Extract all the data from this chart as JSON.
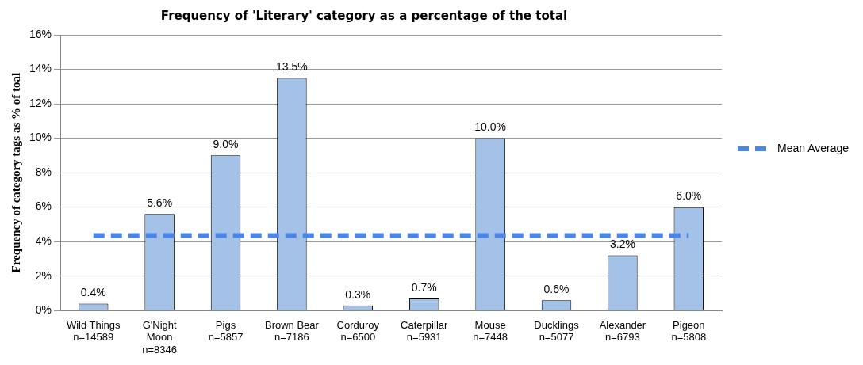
{
  "chart_data": {
    "type": "bar",
    "title": "Frequency of 'Literary' category as a percentage of the total",
    "ylabel": "Frequency of category tags as % of toal",
    "categories": [
      "Wild Things\nn=14589",
      "G'Night\nMoon\nn=8346",
      "Pigs\nn=5857",
      "Brown Bear\nn=7186",
      "Corduroy\nn=6500",
      "Caterpillar\nn=5931",
      "Mouse\nn=7448",
      "Ducklings\nn=5077",
      "Alexander\nn=6793",
      "Pigeon\nn=5808"
    ],
    "values": [
      0.4,
      5.6,
      9.0,
      13.5,
      0.3,
      0.7,
      10.0,
      0.6,
      3.2,
      6.0
    ],
    "value_labels": [
      "0.4%",
      "5.6%",
      "9.0%",
      "13.5%",
      "0.3%",
      "0.7%",
      "10.0%",
      "0.6%",
      "3.2%",
      "6.0%"
    ],
    "color": "#a4c2e8",
    "ylim": [
      0,
      16
    ],
    "yticks": [
      {
        "value": 0,
        "label": "0%"
      },
      {
        "value": 2,
        "label": "2%"
      },
      {
        "value": 4,
        "label": "4%"
      },
      {
        "value": 6,
        "label": "6%"
      },
      {
        "value": 8,
        "label": "8%"
      },
      {
        "value": 10,
        "label": "10%"
      },
      {
        "value": 12,
        "label": "12%"
      },
      {
        "value": 14,
        "label": "14%"
      },
      {
        "value": 16,
        "label": "16%"
      }
    ],
    "grid": "y",
    "legend": "right",
    "ref_lines": [
      {
        "axis": "y",
        "value": 4.35,
        "label": "Mean Average",
        "color": "#4a86e8",
        "line_style": "dashed"
      }
    ]
  }
}
